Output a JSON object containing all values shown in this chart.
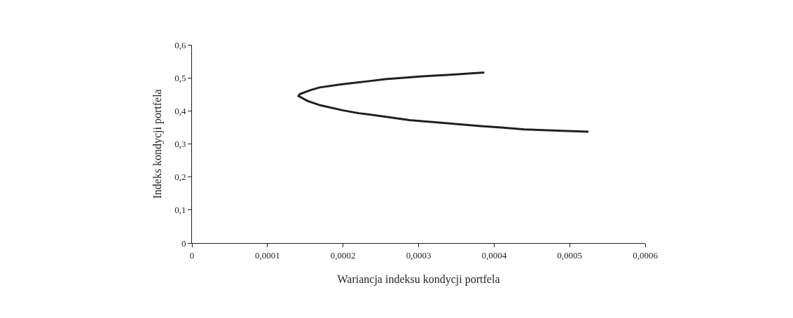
{
  "chart_data": {
    "type": "line",
    "xlabel": "Wariancja indeksu kondycji portfela",
    "ylabel": "Indeks kondycji portfela",
    "series": [
      {
        "color": "#231f20",
        "x": [
          0.000387,
          0.000338,
          0.000308,
          0.000256,
          0.000234,
          0.000197,
          0.000169,
          0.000157,
          0.000143,
          0.000141,
          0.000153,
          0.00017,
          0.000199,
          0.000221,
          0.000235,
          0.00027,
          0.000288,
          0.00033,
          0.000382,
          0.000409,
          0.00044,
          0.00049,
          0.000525
        ],
        "values": [
          0.516,
          0.509,
          0.505,
          0.496,
          0.49,
          0.48,
          0.471,
          0.463,
          0.451,
          0.445,
          0.43,
          0.417,
          0.402,
          0.393,
          0.389,
          0.378,
          0.372,
          0.364,
          0.354,
          0.35,
          0.344,
          0.34,
          0.337
        ]
      }
    ],
    "xlim": [
      0,
      0.0006
    ],
    "xticks": [
      0,
      {
        "value": 0.0001,
        "label": "0,0001"
      },
      {
        "value": 0.0002,
        "label": "0,0002"
      },
      {
        "value": 0.0003,
        "label": "0,0003"
      },
      {
        "value": 0.0004,
        "label": "0,0004"
      },
      {
        "value": 0.0005,
        "label": "0,0005"
      },
      {
        "value": 0.0006,
        "label": "0,0006"
      }
    ],
    "ylim": [
      0,
      0.6
    ],
    "yticks": [
      0,
      {
        "value": 0.1,
        "label": "0,1"
      },
      {
        "value": 0.2,
        "label": "0,2"
      },
      {
        "value": 0.3,
        "label": "0,3"
      },
      {
        "value": 0.4,
        "label": "0,4"
      },
      {
        "value": 0.5,
        "label": "0,5"
      },
      {
        "value": 0.6,
        "label": "0,6"
      }
    ],
    "grid": false,
    "marker": "none",
    "line_style": "solid"
  }
}
